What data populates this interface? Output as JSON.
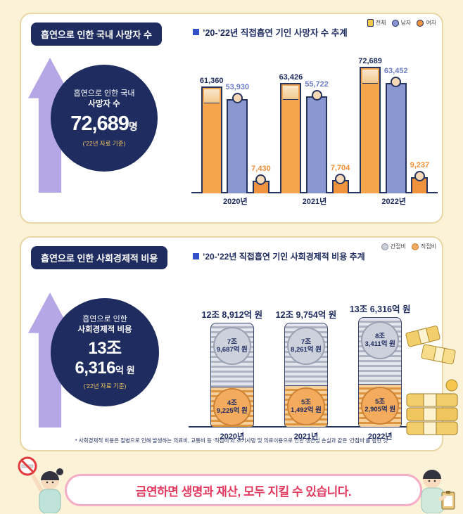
{
  "colors": {
    "navy": "#1e2c60",
    "lavender_arrow": "#b5a7e5",
    "male_blue": "#8a97d0",
    "female_orange": "#f0933f",
    "total_orange": "#f5a54c",
    "indirect_gray": "#c9cdd8",
    "direct_orange": "#f3a95f",
    "accent_yellow": "#f2c75c",
    "banner_red": "#e23a5e",
    "banner_pink_border": "#f5aec5",
    "background_cream": "#fbf2d8"
  },
  "panel_deaths": {
    "header": "흡연으로 인한 국내 사망자 수",
    "chart_title": "’20-’22년 직접흡연 기인 사망자 수 추계",
    "legend": [
      {
        "label": "전체",
        "icon": "cigarette-pack-icon"
      },
      {
        "label": "남자",
        "icon": "male-dot-icon"
      },
      {
        "label": "여자",
        "icon": "female-dot-icon"
      }
    ],
    "highlight": {
      "line1": "흡연으로 인한 국내",
      "line2": "사망자 수",
      "value": "72,689",
      "unit": "명",
      "basis": "(’22년 자료 기준)"
    }
  },
  "panel_costs": {
    "header": "흡연으로 인한 사회경제적 비용",
    "chart_title": "’20-’22년 직접흡연 기인 사회경제적 비용 추계",
    "legend": [
      {
        "label": "간접비",
        "icon": "gray-coin-icon"
      },
      {
        "label": "직접비",
        "icon": "orange-coin-icon"
      }
    ],
    "highlight": {
      "line1": "흡연으로 인한",
      "line2": "사회경제적 비용",
      "value1": "13조",
      "value2": "6,316",
      "unit": "억 원",
      "basis": "(’22년 자료 기준)"
    },
    "footnote": "* 사회경제적 비용은 질병으로 인해 발생하는 의료비, 교통비 등 ‘직접비’와 조기사망 및 의료이용으로 인한 생산성 손실과 같은 ‘간접비’를 합한 것"
  },
  "banner": {
    "text": "금연하면 생명과 재산, 모두 지킬 수 있습니다."
  },
  "chart_data": [
    {
      "type": "bar",
      "title": "’20-’22년 직접흡연 기인 사망자 수 추계",
      "unit": "명",
      "categories": [
        "2020년",
        "2021년",
        "2022년"
      ],
      "series": [
        {
          "name": "전체",
          "color": "#f5a54c",
          "values": [
            61360,
            63426,
            72689
          ],
          "display": [
            "61,360",
            "63,426",
            "72,689"
          ]
        },
        {
          "name": "남자",
          "color": "#8a97d0",
          "values": [
            53930,
            55722,
            63452
          ],
          "display": [
            "53,930",
            "55,722",
            "63,452"
          ]
        },
        {
          "name": "여자",
          "color": "#f0933f",
          "values": [
            7430,
            7704,
            9237
          ],
          "display": [
            "7,430",
            "7,704",
            "9,237"
          ]
        }
      ],
      "ylim": [
        0,
        80000
      ],
      "legend_position": "top-right",
      "grid": false
    },
    {
      "type": "bar",
      "subtype": "stacked-coin-columns",
      "title": "’20-’22년 직접흡연 기인 사회경제적 비용 추계",
      "unit": "억 원",
      "categories": [
        "2020년",
        "2021년",
        "2022년"
      ],
      "totals": [
        128912,
        129754,
        136316
      ],
      "totals_display": [
        "12조 8,912억 원",
        "12조 9,754억 원",
        "13조 6,316억 원"
      ],
      "series": [
        {
          "name": "간접비",
          "color": "#c9cdd8",
          "values": [
            79687,
            78261,
            83411
          ],
          "display_line1": [
            "7조",
            "7조",
            "8조"
          ],
          "display_line2": [
            "9,687억 원",
            "8,261억 원",
            "3,411억 원"
          ]
        },
        {
          "name": "직접비",
          "color": "#f3a95f",
          "values": [
            49225,
            51492,
            52905
          ],
          "display_line1": [
            "4조",
            "5조",
            "5조"
          ],
          "display_line2": [
            "9,225억 원",
            "1,492억 원",
            "2,905억 원"
          ]
        }
      ],
      "legend_position": "top-right",
      "grid": false
    }
  ]
}
